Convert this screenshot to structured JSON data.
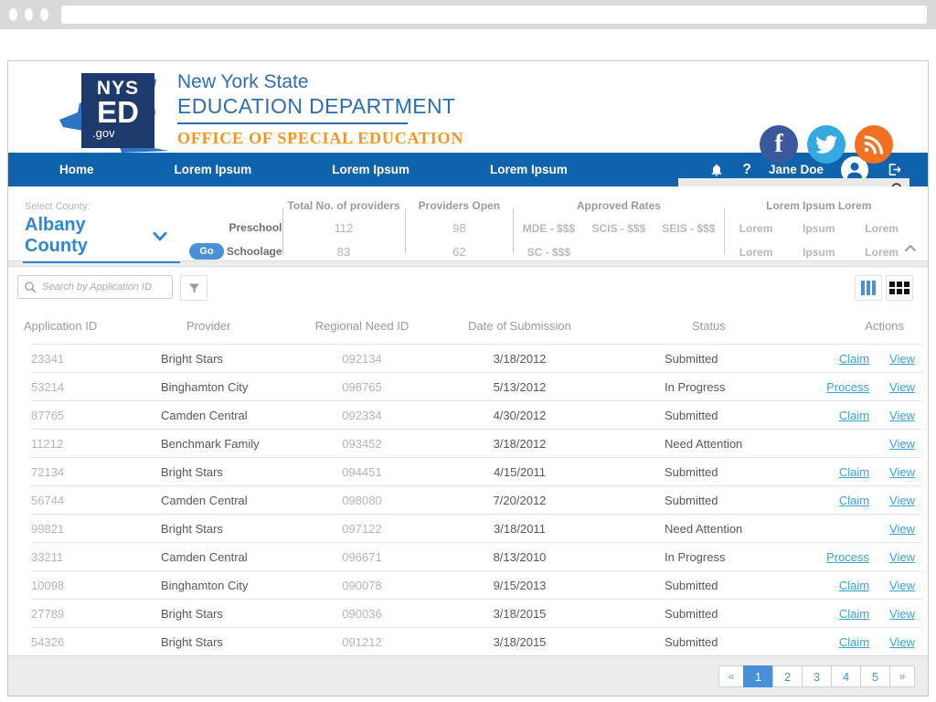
{
  "browser": {
    "address": ""
  },
  "header": {
    "logo": {
      "square_line1": "NYS",
      "square_line2": "ED",
      "square_line3": ".gov",
      "title_line1": "New York State",
      "title_line2": "EDUCATION DEPARTMENT",
      "title_line3": "OFFICE OF SPECIAL EDUCATION"
    },
    "social": [
      "facebook",
      "twitter",
      "rss"
    ],
    "search_placeholder": ""
  },
  "nav": {
    "items": [
      "Home",
      "Lorem Ipsum",
      "Lorem Ipsum",
      "Lorem Ipsum"
    ],
    "user": "Jane Doe"
  },
  "stats": {
    "select_label": "Select County:",
    "county": "Albany County",
    "go_label": "Go",
    "row_labels": [
      "Preschool",
      "Schoolage"
    ],
    "columns": [
      {
        "header": "Total No. of providers",
        "values": [
          "112",
          "83"
        ]
      },
      {
        "header": "Providers Open",
        "values": [
          "98",
          "62"
        ]
      },
      {
        "header": "Approved Rates",
        "rows": [
          [
            "MDE - $$$",
            "SCIS - $$$",
            "SEIS - $$$"
          ],
          [
            "SC - $$$",
            "",
            ""
          ]
        ]
      },
      {
        "header": "Lorem Ipsum Lorem",
        "rows": [
          [
            "Lorem",
            "Ipsum",
            "Lorem"
          ],
          [
            "Lorem",
            "Ipsum",
            "Lorem"
          ]
        ]
      }
    ]
  },
  "toolbar": {
    "search_placeholder": "Search by Application ID"
  },
  "table": {
    "columns": [
      "Application ID",
      "Provider",
      "Regional Need ID",
      "Date of Submission",
      "Status",
      "Actions"
    ],
    "rows": [
      {
        "id": "23341",
        "provider": "Bright Stars",
        "need_id": "092134",
        "date": "3/18/2012",
        "status": "Submitted",
        "actions": [
          "Claim",
          "View"
        ]
      },
      {
        "id": "53214",
        "provider": "Binghamton City",
        "need_id": "098765",
        "date": "5/13/2012",
        "status": "In Progress",
        "actions": [
          "Process",
          "View"
        ]
      },
      {
        "id": "87765",
        "provider": "Camden Central",
        "need_id": "092334",
        "date": "4/30/2012",
        "status": "Submitted",
        "actions": [
          "Claim",
          "View"
        ]
      },
      {
        "id": "11212",
        "provider": "Benchmark Family",
        "need_id": "093452",
        "date": "3/18/2012",
        "status": "Need Attention",
        "actions": [
          "View"
        ]
      },
      {
        "id": "72134",
        "provider": "Bright Stars",
        "need_id": "094451",
        "date": "4/15/2011",
        "status": "Submitted",
        "actions": [
          "Claim",
          "View"
        ]
      },
      {
        "id": "56744",
        "provider": "Camden Central",
        "need_id": "098080",
        "date": "7/20/2012",
        "status": "Submitted",
        "actions": [
          "Claim",
          "View"
        ]
      },
      {
        "id": "99821",
        "provider": "Bright Stars",
        "need_id": "097122",
        "date": "3/18/2011",
        "status": "Need Attention",
        "actions": [
          "View"
        ]
      },
      {
        "id": "33211",
        "provider": "Camden Central",
        "need_id": "096671",
        "date": "8/13/2010",
        "status": "In Progress",
        "actions": [
          "Process",
          "View"
        ]
      },
      {
        "id": "10098",
        "provider": "Binghamton City",
        "need_id": "090078",
        "date": "9/15/2013",
        "status": "Submitted",
        "actions": [
          "Claim",
          "View"
        ]
      },
      {
        "id": "27789",
        "provider": "Bright Stars",
        "need_id": "090036",
        "date": "3/18/2015",
        "status": "Submitted",
        "actions": [
          "Claim",
          "View"
        ]
      },
      {
        "id": "54326",
        "provider": "Bright Stars",
        "need_id": "091212",
        "date": "3/18/2015",
        "status": "Submitted",
        "actions": [
          "Claim",
          "View"
        ]
      }
    ]
  },
  "pagination": {
    "prev": "«",
    "pages": [
      "1",
      "2",
      "3",
      "4",
      "5"
    ],
    "next": "»",
    "active": "1"
  },
  "colors": {
    "nav_blue": "#0f63ad",
    "link_blue": "#3aa3da",
    "accent_blue": "#4a90d9",
    "county_blue": "#2e86d5",
    "logo_navy": "#1e3a6d",
    "logo_blue": "#2d6db5",
    "office_orange": "#f7941e",
    "facebook": "#3a589b",
    "twitter": "#34a8e0",
    "rss": "#f36f21"
  }
}
